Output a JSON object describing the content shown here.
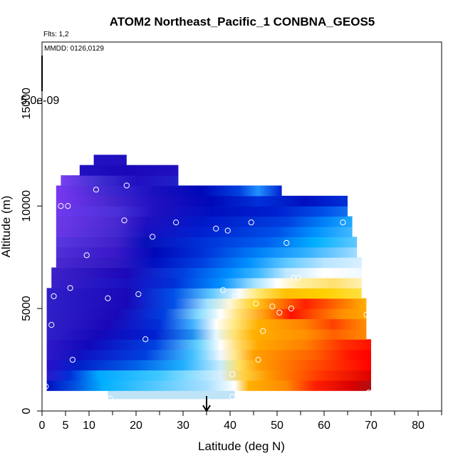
{
  "chart_data": {
    "type": "heatmap",
    "title": "ATOM2 Northeast_Pacific_1 CONBNA_GEOS5",
    "annotations": {
      "flights": "Flts: 1,2",
      "dates": "MMDD: 0126,0129",
      "colorbar_max": "5.0e-09"
    },
    "xlabel": "Latitude (deg N)",
    "ylabel": "Altitude (m)",
    "xlim": [
      0,
      85
    ],
    "ylim": [
      0,
      18000
    ],
    "x_ticks": [
      0,
      5,
      10,
      20,
      30,
      40,
      50,
      60,
      70,
      80
    ],
    "x_tick_labels": [
      "0",
      "5",
      "10",
      "20",
      "30",
      "40",
      "50",
      "60",
      "70",
      "80"
    ],
    "y_ticks": [
      0,
      5000,
      10000,
      15000
    ],
    "y_tick_labels": [
      "0",
      "5000",
      "10000",
      "15000"
    ],
    "grid": false,
    "arrow_latitude": 35,
    "bands": [
      {
        "alt": [
          600,
          1000
        ],
        "lat": [
          14,
          41
        ],
        "stops": [
          [
            14,
            "#bfe3f7"
          ],
          [
            41,
            "#bfe3f7"
          ]
        ]
      },
      {
        "alt": [
          1000,
          1500
        ],
        "lat": [
          1,
          70
        ],
        "stops": [
          [
            1,
            "#0010c0"
          ],
          [
            7,
            "#0050e0"
          ],
          [
            13,
            "#00b0ff"
          ],
          [
            35,
            "#a8e0ff"
          ],
          [
            41,
            "#ffffff"
          ],
          [
            44,
            "#ffb000"
          ],
          [
            52,
            "#ff8a00"
          ],
          [
            58,
            "#ff2000"
          ],
          [
            66,
            "#d80000"
          ],
          [
            70,
            "#b01010"
          ]
        ]
      },
      {
        "alt": [
          1500,
          2000
        ],
        "lat": [
          1,
          70
        ],
        "stops": [
          [
            1,
            "#2a18c8"
          ],
          [
            6,
            "#0030d8"
          ],
          [
            12,
            "#00a8ff"
          ],
          [
            25,
            "#40c8ff"
          ],
          [
            38,
            "#d8f0ff"
          ],
          [
            43,
            "#ffd040"
          ],
          [
            48,
            "#ff9a00"
          ],
          [
            60,
            "#ff3000"
          ],
          [
            70,
            "#e00000"
          ]
        ]
      },
      {
        "alt": [
          2000,
          2500
        ],
        "lat": [
          1,
          70
        ],
        "stops": [
          [
            1,
            "#2810c8"
          ],
          [
            8,
            "#0020c8"
          ],
          [
            20,
            "#0060e8"
          ],
          [
            30,
            "#20b0ff"
          ],
          [
            38,
            "#c8ecff"
          ],
          [
            42,
            "#ffe060"
          ],
          [
            46,
            "#ffa000"
          ],
          [
            60,
            "#ff4000"
          ],
          [
            70,
            "#ff0000"
          ]
        ]
      },
      {
        "alt": [
          2500,
          3000
        ],
        "lat": [
          1,
          70
        ],
        "stops": [
          [
            1,
            "#3018c8"
          ],
          [
            8,
            "#1010c0"
          ],
          [
            22,
            "#0040e0"
          ],
          [
            32,
            "#40c0ff"
          ],
          [
            38,
            "#f0f8ff"
          ],
          [
            41,
            "#ffe890"
          ],
          [
            45,
            "#ffa000"
          ],
          [
            58,
            "#ff6000"
          ],
          [
            66,
            "#ff1000"
          ],
          [
            70,
            "#ff0000"
          ]
        ]
      },
      {
        "alt": [
          3000,
          3500
        ],
        "lat": [
          1,
          70
        ],
        "stops": [
          [
            1,
            "#3018c8"
          ],
          [
            10,
            "#1008b8"
          ],
          [
            24,
            "#0040e0"
          ],
          [
            33,
            "#60d0ff"
          ],
          [
            38,
            "#ffffff"
          ],
          [
            42,
            "#ffd860"
          ],
          [
            46,
            "#ffa800"
          ],
          [
            56,
            "#ff8000"
          ],
          [
            64,
            "#ff3000"
          ],
          [
            70,
            "#ff1000"
          ]
        ]
      },
      {
        "alt": [
          3500,
          4000
        ],
        "lat": [
          1,
          69
        ],
        "stops": [
          [
            1,
            "#3020c8"
          ],
          [
            12,
            "#1508b8"
          ],
          [
            24,
            "#0020d0"
          ],
          [
            32,
            "#2090f0"
          ],
          [
            37,
            "#e8f8ff"
          ],
          [
            41,
            "#ffe070"
          ],
          [
            45,
            "#ffb000"
          ],
          [
            56,
            "#ff9000"
          ],
          [
            62,
            "#ff6000"
          ],
          [
            69,
            "#ff8800"
          ]
        ]
      },
      {
        "alt": [
          4000,
          4500
        ],
        "lat": [
          1,
          69
        ],
        "stops": [
          [
            1,
            "#3220c8"
          ],
          [
            14,
            "#1a08b8"
          ],
          [
            25,
            "#0030d8"
          ],
          [
            32,
            "#40b0ff"
          ],
          [
            37,
            "#ffffff"
          ],
          [
            41,
            "#ffe880"
          ],
          [
            46,
            "#ffb000"
          ],
          [
            56,
            "#ff8000"
          ],
          [
            62,
            "#ff4000"
          ],
          [
            69,
            "#ff9000"
          ]
        ]
      },
      {
        "alt": [
          4500,
          5000
        ],
        "lat": [
          1,
          69
        ],
        "stops": [
          [
            1,
            "#3020c8"
          ],
          [
            16,
            "#1a08b8"
          ],
          [
            26,
            "#0040e0"
          ],
          [
            33,
            "#80d8ff"
          ],
          [
            38,
            "#ffffff"
          ],
          [
            42,
            "#ffe070"
          ],
          [
            48,
            "#ff9000"
          ],
          [
            53,
            "#ff1000"
          ],
          [
            58,
            "#ff5000"
          ],
          [
            64,
            "#ff9000"
          ],
          [
            69,
            "#ffa800"
          ]
        ]
      },
      {
        "alt": [
          5000,
          5500
        ],
        "lat": [
          1,
          69
        ],
        "stops": [
          [
            1,
            "#3020c8"
          ],
          [
            18,
            "#1808b8"
          ],
          [
            28,
            "#0050e8"
          ],
          [
            35,
            "#a0e0ff"
          ],
          [
            40,
            "#fff8d8"
          ],
          [
            45,
            "#ffd020"
          ],
          [
            50,
            "#ff8000"
          ],
          [
            56,
            "#ff2000"
          ],
          [
            62,
            "#ff6000"
          ],
          [
            69,
            "#ffb000"
          ]
        ]
      },
      {
        "alt": [
          5500,
          6000
        ],
        "lat": [
          1,
          68
        ],
        "stops": [
          [
            1,
            "#3020c8"
          ],
          [
            18,
            "#1808b8"
          ],
          [
            28,
            "#0050e8"
          ],
          [
            36,
            "#60c8ff"
          ],
          [
            42,
            "#f8fcff"
          ],
          [
            46,
            "#ffe870"
          ],
          [
            52,
            "#ffc000"
          ],
          [
            60,
            "#ffd000"
          ],
          [
            68,
            "#ffe040"
          ]
        ]
      },
      {
        "alt": [
          6000,
          6500
        ],
        "lat": [
          2,
          68
        ],
        "stops": [
          [
            2,
            "#3a20c8"
          ],
          [
            18,
            "#1a10c0"
          ],
          [
            28,
            "#0030d8"
          ],
          [
            38,
            "#0090ff"
          ],
          [
            45,
            "#a0e0ff"
          ],
          [
            50,
            "#ffffff"
          ],
          [
            55,
            "#fff0a0"
          ],
          [
            62,
            "#ffe070"
          ],
          [
            68,
            "#fff0b0"
          ]
        ]
      },
      {
        "alt": [
          6500,
          7000
        ],
        "lat": [
          2,
          68
        ],
        "stops": [
          [
            2,
            "#3e22c8"
          ],
          [
            18,
            "#1c08b8"
          ],
          [
            30,
            "#0040e0"
          ],
          [
            40,
            "#0090ff"
          ],
          [
            46,
            "#40b8ff"
          ],
          [
            52,
            "#c0e8ff"
          ],
          [
            60,
            "#ffffff"
          ],
          [
            68,
            "#f0f8ff"
          ]
        ]
      },
      {
        "alt": [
          7000,
          7500
        ],
        "lat": [
          3,
          68
        ],
        "stops": [
          [
            3,
            "#4a28d0"
          ],
          [
            16,
            "#3018c0"
          ],
          [
            24,
            "#0010c0"
          ],
          [
            34,
            "#0040e0"
          ],
          [
            44,
            "#0090ff"
          ],
          [
            52,
            "#60c8ff"
          ],
          [
            60,
            "#b8e4ff"
          ],
          [
            68,
            "#d8f0ff"
          ]
        ]
      },
      {
        "alt": [
          7500,
          8000
        ],
        "lat": [
          3,
          67
        ],
        "stops": [
          [
            3,
            "#5030d8"
          ],
          [
            16,
            "#3818c8"
          ],
          [
            24,
            "#0008b8"
          ],
          [
            34,
            "#0030d8"
          ],
          [
            46,
            "#0080f8"
          ],
          [
            56,
            "#30b0ff"
          ],
          [
            67,
            "#a0dcff"
          ]
        ]
      },
      {
        "alt": [
          8000,
          8500
        ],
        "lat": [
          3,
          67
        ],
        "stops": [
          [
            3,
            "#5838e0"
          ],
          [
            16,
            "#4020c8"
          ],
          [
            22,
            "#0810b8"
          ],
          [
            34,
            "#0030d8"
          ],
          [
            48,
            "#0060f0"
          ],
          [
            58,
            "#00b0ff"
          ],
          [
            67,
            "#60c8ff"
          ]
        ]
      },
      {
        "alt": [
          8500,
          9000
        ],
        "lat": [
          3,
          66
        ],
        "stops": [
          [
            3,
            "#6a38e8"
          ],
          [
            16,
            "#4428d0"
          ],
          [
            22,
            "#1810c0"
          ],
          [
            34,
            "#0020d0"
          ],
          [
            50,
            "#0050e8"
          ],
          [
            58,
            "#0090ff"
          ],
          [
            66,
            "#40b8ff"
          ]
        ]
      },
      {
        "alt": [
          9000,
          9500
        ],
        "lat": [
          3,
          66
        ],
        "stops": [
          [
            3,
            "#6c3ae8"
          ],
          [
            16,
            "#4a28d0"
          ],
          [
            22,
            "#2010c0"
          ],
          [
            34,
            "#0018c8"
          ],
          [
            52,
            "#0040e0"
          ],
          [
            60,
            "#0080f8"
          ],
          [
            66,
            "#20a8ff"
          ]
        ]
      },
      {
        "alt": [
          9500,
          10000
        ],
        "lat": [
          3,
          65
        ],
        "stops": [
          [
            3,
            "#7038f0"
          ],
          [
            16,
            "#4a30d8"
          ],
          [
            24,
            "#2010c0"
          ],
          [
            36,
            "#0010c0"
          ],
          [
            50,
            "#0020d0"
          ],
          [
            60,
            "#0050e8"
          ],
          [
            65,
            "#1070f0"
          ]
        ]
      },
      {
        "alt": [
          10000,
          10500
        ],
        "lat": [
          3,
          65
        ],
        "stops": [
          [
            3,
            "#7838f0"
          ],
          [
            14,
            "#4a28d0"
          ],
          [
            24,
            "#2010c0"
          ],
          [
            36,
            "#0008b8"
          ],
          [
            46,
            "#0030d8"
          ],
          [
            56,
            "#0010c0"
          ],
          [
            65,
            "#0030d8"
          ]
        ]
      },
      {
        "alt": [
          10500,
          11000
        ],
        "lat": [
          3,
          51
        ],
        "stops": [
          [
            3,
            "#7838f0"
          ],
          [
            14,
            "#4028d0"
          ],
          [
            24,
            "#1a10c0"
          ],
          [
            34,
            "#0008b8"
          ],
          [
            42,
            "#0040e0"
          ],
          [
            46,
            "#2090ff"
          ],
          [
            51,
            "#0020d0"
          ]
        ]
      },
      {
        "alt": [
          11000,
          11500
        ],
        "lat": [
          4,
          29
        ],
        "stops": [
          [
            4,
            "#7840f0"
          ],
          [
            12,
            "#4030d0"
          ],
          [
            20,
            "#2010c0"
          ],
          [
            29,
            "#2020c8"
          ]
        ]
      },
      {
        "alt": [
          11500,
          12000
        ],
        "lat": [
          8,
          29
        ],
        "stops": [
          [
            8,
            "#2010c0"
          ],
          [
            18,
            "#1a08b8"
          ],
          [
            29,
            "#2010c0"
          ]
        ]
      },
      {
        "alt": [
          12000,
          12500
        ],
        "lat": [
          11,
          18
        ],
        "stops": [
          [
            11,
            "#2010c0"
          ],
          [
            18,
            "#2010c0"
          ]
        ]
      }
    ],
    "points": [
      [
        0.8,
        1200
      ],
      [
        6.5,
        2500
      ],
      [
        2.0,
        4200
      ],
      [
        22.0,
        3500
      ],
      [
        2.5,
        5600
      ],
      [
        14.0,
        5500
      ],
      [
        20.5,
        5700
      ],
      [
        6.0,
        6000
      ],
      [
        38.5,
        5900
      ],
      [
        41.0,
        5600
      ],
      [
        45.5,
        5250
      ],
      [
        49.0,
        5100
      ],
      [
        50.5,
        4800
      ],
      [
        53.0,
        5000
      ],
      [
        47.0,
        3900
      ],
      [
        46.0,
        2500
      ],
      [
        40.5,
        1800
      ],
      [
        40.5,
        700
      ],
      [
        14.5,
        600
      ],
      [
        69.5,
        900
      ],
      [
        69.0,
        4700
      ],
      [
        9.5,
        7600
      ],
      [
        23.5,
        8500
      ],
      [
        17.5,
        9300
      ],
      [
        28.5,
        9200
      ],
      [
        37.0,
        8900
      ],
      [
        39.5,
        8800
      ],
      [
        44.5,
        9200
      ],
      [
        52.0,
        8200
      ],
      [
        53.5,
        6500
      ],
      [
        54.5,
        6500
      ],
      [
        64.0,
        9200
      ],
      [
        1.5,
        9200
      ],
      [
        4.0,
        10000
      ],
      [
        5.5,
        10000
      ],
      [
        11.5,
        10800
      ],
      [
        18.0,
        11000
      ]
    ]
  }
}
